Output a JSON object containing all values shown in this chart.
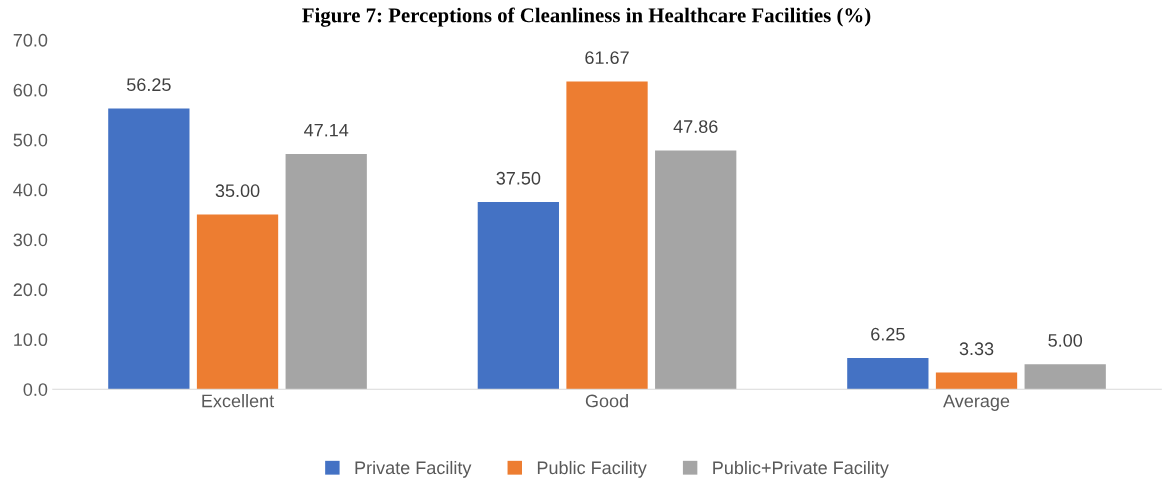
{
  "chart_data": {
    "type": "bar",
    "title": "Figure 7: Perceptions of Cleanliness in Healthcare Facilities (%)",
    "categories": [
      "Excellent",
      "Good",
      "Average"
    ],
    "series": [
      {
        "name": "Private Facility",
        "color": "#4472c4",
        "values": [
          56.25,
          37.5,
          6.25
        ]
      },
      {
        "name": "Public Facility",
        "color": "#ed7d31",
        "values": [
          35.0,
          61.67,
          3.33
        ]
      },
      {
        "name": "Public+Private Facility",
        "color": "#a5a5a5",
        "values": [
          47.14,
          47.86,
          5.0
        ]
      }
    ],
    "value_labels": [
      [
        "56.25",
        "37.50",
        "6.25"
      ],
      [
        "35.00",
        "61.67",
        "3.33"
      ],
      [
        "47.14",
        "47.86",
        "5.00"
      ]
    ],
    "ylim": [
      0,
      70
    ],
    "yticks": [
      {
        "value": 0,
        "label": "0.0"
      },
      {
        "value": 10,
        "label": "10.0"
      },
      {
        "value": 20,
        "label": "20.0"
      },
      {
        "value": 30,
        "label": "30.0"
      },
      {
        "value": 40,
        "label": "40.0"
      },
      {
        "value": 50,
        "label": "50.0"
      },
      {
        "value": 60,
        "label": "60.0"
      },
      {
        "value": 70,
        "label": "70.0"
      }
    ],
    "grid": false,
    "legend": "bottom"
  }
}
